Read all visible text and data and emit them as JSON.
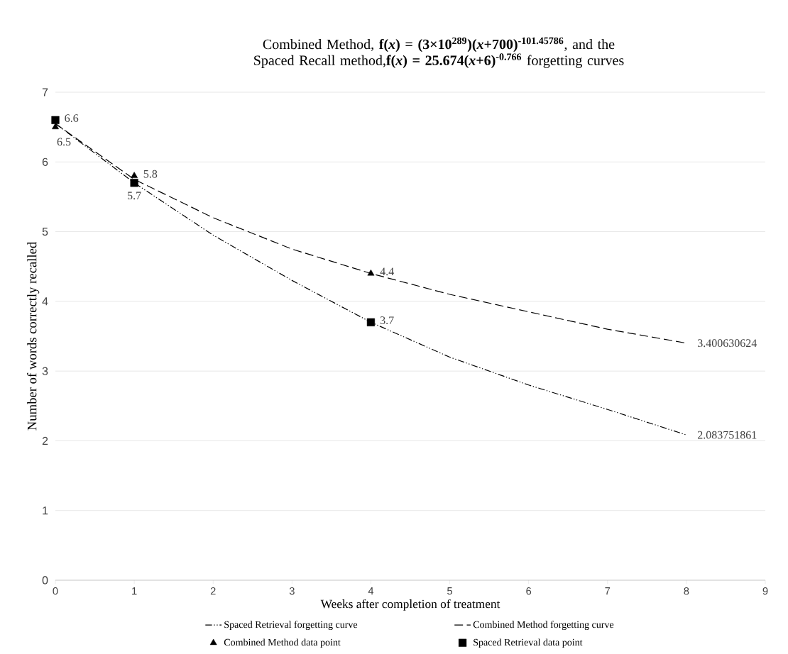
{
  "chart_data": {
    "type": "line",
    "title": "Combined Method, **f(*x*) = (3×10$^{289}$)(*x*+700)$^{-101.45786}$**, and the Spaced Recall method,**f(*x*) = 25.674(*x*+6)$^{-0.766}$** forgetting curves",
    "xlabel": "Weeks after completion of treatment",
    "ylabel": "Number of words correctly recalled",
    "xlim": [
      0,
      9
    ],
    "ylim": [
      0,
      7
    ],
    "xticks": [
      0,
      1,
      2,
      3,
      4,
      5,
      6,
      7,
      8,
      9
    ],
    "yticks": [
      0,
      1,
      2,
      3,
      4,
      5,
      6,
      7
    ],
    "grid": "y",
    "legend": "bottom",
    "series": [
      {
        "name": "Spaced Retrieval forgetting curve",
        "line_style": "dashdotdotted",
        "marker": "none",
        "color": "#000000",
        "x": [
          0,
          1,
          2,
          3,
          4,
          5,
          6,
          7,
          8
        ],
        "values": [
          6.55,
          5.7,
          4.95,
          4.3,
          3.7,
          3.2,
          2.8,
          2.45,
          2.083751861
        ],
        "value_labels": [
          null,
          null,
          null,
          null,
          null,
          null,
          null,
          null,
          "2.083751861"
        ]
      },
      {
        "name": "Combined Method forgetting curve",
        "line_style": "dashed",
        "marker": "none",
        "color": "#000000",
        "x": [
          0,
          1,
          2,
          3,
          4,
          5,
          6,
          7,
          8
        ],
        "values": [
          6.55,
          5.75,
          5.2,
          4.75,
          4.4,
          4.1,
          3.85,
          3.6,
          3.400630624
        ],
        "value_labels": [
          null,
          null,
          null,
          null,
          null,
          null,
          null,
          null,
          "3.400630624"
        ]
      },
      {
        "name": "Combined Method data point",
        "type": "scatter",
        "marker": "triangle",
        "color": "#000000",
        "x": [
          0,
          1,
          4
        ],
        "values": [
          6.5,
          5.8,
          4.4
        ],
        "data_labels": true
      },
      {
        "name": "Spaced Retrieval data point",
        "type": "scatter",
        "marker": "square",
        "color": "#000000",
        "x": [
          0,
          1,
          4
        ],
        "values": [
          6.6,
          5.7,
          3.7
        ],
        "data_labels": true
      }
    ]
  }
}
